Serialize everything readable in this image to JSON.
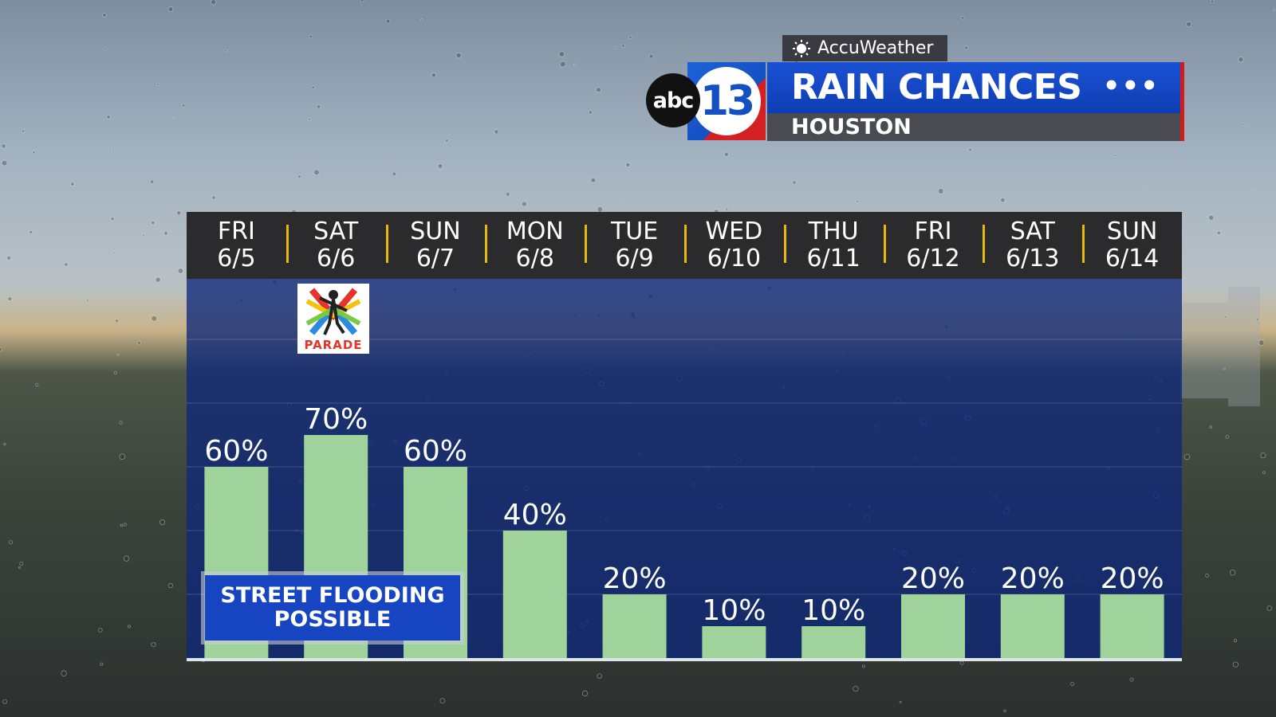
{
  "header": {
    "provider": "AccuWeather",
    "station_abc": "abc",
    "station_num": "13",
    "title": "RAIN CHANCES",
    "location": "HOUSTON",
    "more_icon": "•••"
  },
  "badge": {
    "parade_text": "PARADE"
  },
  "callout": {
    "line1": "STREET FLOODING",
    "line2": "POSSIBLE"
  },
  "colors": {
    "bar": "#9fd39b",
    "plot_bg": "#0e2878",
    "header_bg": "#2b2b2e",
    "separator": "#e9b80d",
    "title_bar": "#1a52d4",
    "accent_red": "#d21c1c"
  },
  "chart_data": {
    "type": "bar",
    "days": [
      {
        "dow": "FRI",
        "date": "6/5"
      },
      {
        "dow": "SAT",
        "date": "6/6"
      },
      {
        "dow": "SUN",
        "date": "6/7"
      },
      {
        "dow": "MON",
        "date": "6/8"
      },
      {
        "dow": "TUE",
        "date": "6/9"
      },
      {
        "dow": "WED",
        "date": "6/10"
      },
      {
        "dow": "THU",
        "date": "6/11"
      },
      {
        "dow": "FRI",
        "date": "6/12"
      },
      {
        "dow": "SAT",
        "date": "6/13"
      },
      {
        "dow": "SUN",
        "date": "6/14"
      }
    ],
    "values": [
      60,
      70,
      60,
      40,
      20,
      10,
      10,
      20,
      20,
      20
    ],
    "labels": [
      "60%",
      "70%",
      "60%",
      "40%",
      "20%",
      "10%",
      "10%",
      "20%",
      "20%",
      "20%"
    ],
    "ylim": [
      0,
      100
    ],
    "grid": true
  }
}
